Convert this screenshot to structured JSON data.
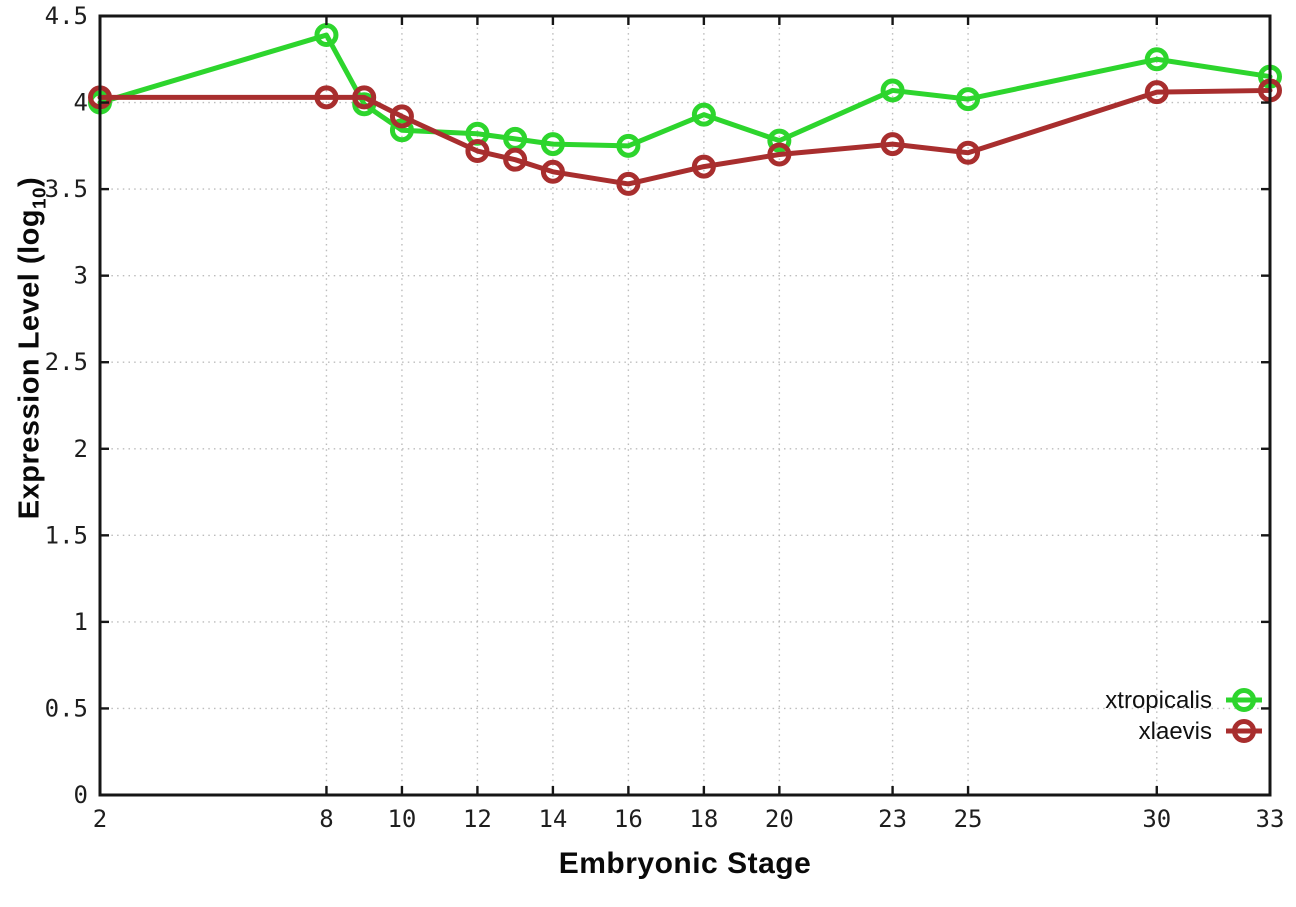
{
  "chart_data": {
    "type": "line",
    "title": "",
    "xlabel": "Embryonic Stage",
    "ylabel": "Expression Level (log10)",
    "ylabel_parts": {
      "main": "Expression Level (log",
      "sub": "10",
      "suffix": ")"
    },
    "x": [
      2,
      8,
      9,
      10,
      12,
      13,
      14,
      16,
      18,
      20,
      23,
      25,
      30,
      33
    ],
    "x_ticks": [
      2,
      8,
      10,
      12,
      14,
      16,
      18,
      20,
      23,
      25,
      30,
      33
    ],
    "y_ticks": [
      0,
      0.5,
      1,
      1.5,
      2,
      2.5,
      3,
      3.5,
      4,
      4.5
    ],
    "xlim": [
      2,
      33
    ],
    "ylim": [
      0,
      4.5
    ],
    "grid": true,
    "marker": "open-circle",
    "legend": {
      "position": "inside-bottom-right",
      "entries": [
        "xtropicalis",
        "xlaevis"
      ]
    },
    "series": [
      {
        "name": "xtropicalis",
        "color": "#2dd52d",
        "values": [
          4.0,
          4.39,
          3.99,
          3.84,
          3.82,
          3.79,
          3.76,
          3.75,
          3.93,
          3.78,
          4.07,
          4.02,
          4.25,
          4.15
        ]
      },
      {
        "name": "xlaevis",
        "color": "#a82e2e",
        "values": [
          4.03,
          4.03,
          4.03,
          3.92,
          3.72,
          3.67,
          3.6,
          3.53,
          3.63,
          3.7,
          3.76,
          3.71,
          4.06,
          4.07
        ]
      }
    ]
  }
}
